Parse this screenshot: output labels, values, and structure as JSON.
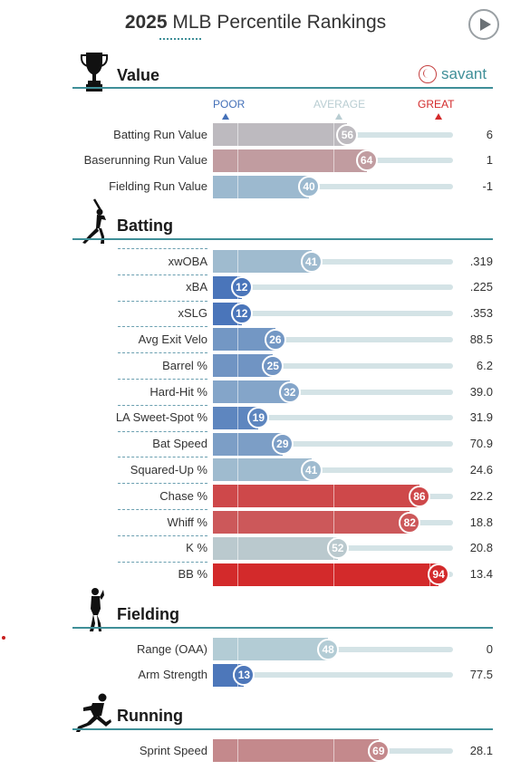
{
  "header": {
    "title_year": "2025",
    "title_rest": " MLB Percentile Rankings",
    "brand": "savant"
  },
  "scale": {
    "poor": "POOR",
    "average": "AVERAGE",
    "great": "GREAT"
  },
  "colors": {
    "poor": "#4470b8",
    "average": "#b9d1d6",
    "great": "#d32a2b",
    "accent": "#3f8f98"
  },
  "sections": [
    {
      "title": "Value",
      "icon": "trophy-icon"
    },
    {
      "title": "Batting",
      "icon": "batter-icon"
    },
    {
      "title": "Fielding",
      "icon": "fielder-icon"
    },
    {
      "title": "Running",
      "icon": "runner-icon"
    }
  ],
  "chart_data": {
    "type": "bar",
    "title": "2025 MLB Percentile Rankings",
    "xlim": [
      0,
      100
    ],
    "groups": [
      {
        "section": "Value",
        "rows": [
          {
            "metric": "Batting Run Value",
            "percentile": 56,
            "value": "6"
          },
          {
            "metric": "Baserunning Run Value",
            "percentile": 64,
            "value": "1"
          },
          {
            "metric": "Fielding Run Value",
            "percentile": 40,
            "value": "-1"
          }
        ]
      },
      {
        "section": "Batting",
        "rows": [
          {
            "metric": "xwOBA",
            "percentile": 41,
            "value": ".319"
          },
          {
            "metric": "xBA",
            "percentile": 12,
            "value": ".225"
          },
          {
            "metric": "xSLG",
            "percentile": 12,
            "value": ".353"
          },
          {
            "metric": "Avg Exit Velo",
            "percentile": 26,
            "value": "88.5"
          },
          {
            "metric": "Barrel %",
            "percentile": 25,
            "value": "6.2"
          },
          {
            "metric": "Hard-Hit %",
            "percentile": 32,
            "value": "39.0"
          },
          {
            "metric": "LA Sweet-Spot %",
            "percentile": 19,
            "value": "31.9"
          },
          {
            "metric": "Bat Speed",
            "percentile": 29,
            "value": "70.9"
          },
          {
            "metric": "Squared-Up %",
            "percentile": 41,
            "value": "24.6"
          },
          {
            "metric": "Chase %",
            "percentile": 86,
            "value": "22.2"
          },
          {
            "metric": "Whiff %",
            "percentile": 82,
            "value": "18.8"
          },
          {
            "metric": "K %",
            "percentile": 52,
            "value": "20.8"
          },
          {
            "metric": "BB %",
            "percentile": 94,
            "value": "13.4"
          }
        ]
      },
      {
        "section": "Fielding",
        "rows": [
          {
            "metric": "Range (OAA)",
            "percentile": 48,
            "value": "0"
          },
          {
            "metric": "Arm Strength",
            "percentile": 13,
            "value": "77.5"
          }
        ]
      },
      {
        "section": "Running",
        "rows": [
          {
            "metric": "Sprint Speed",
            "percentile": 69,
            "value": "28.1"
          }
        ]
      }
    ]
  }
}
